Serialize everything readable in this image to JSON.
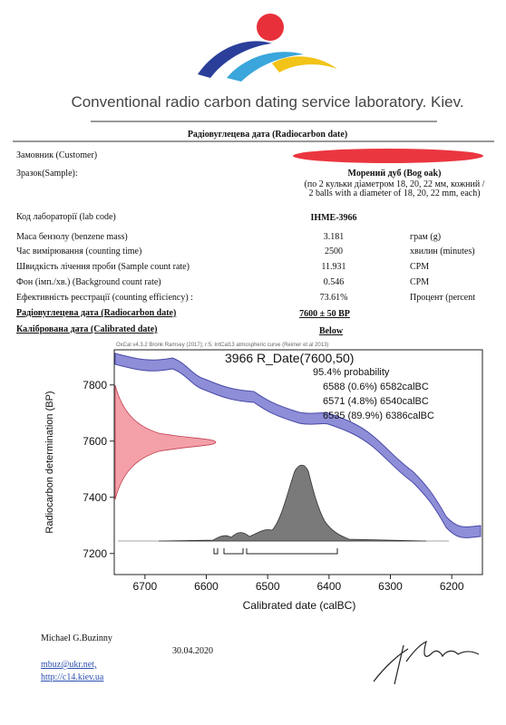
{
  "header": {
    "lab_name": "Conventional radio carbon dating service laboratory. Kiev."
  },
  "title": "Радіовуглецева дата (Radiocarbon date)",
  "rows": [
    {
      "label": "Замовник (Customer)"
    },
    {
      "label": "Зразок(Sample):",
      "value": "Морений дуб (Bog oak)",
      "value_note": [
        "(по 2 кульки діаметром 18, 20, 22 мм, кожний /",
        "2 balls with a diameter of 18, 20, 22 mm, each)"
      ]
    },
    {
      "label": "Код лабораторії (lab code)",
      "value": "ІНМЕ-3966"
    },
    {
      "label": "Маса бензолу (benzene mass)",
      "value": "3.181",
      "unit": "грам (g)"
    },
    {
      "label": "Час вимірювання (counting time)",
      "value": "2500",
      "unit": "хвилин (minutes)"
    },
    {
      "label": "Швидкість лічення проби (Sample count rate)",
      "value": "11.931",
      "unit": "CPM"
    },
    {
      "label": "Фон (імп./хв.) (Background count rate)",
      "value": "0.546",
      "unit": "CPM"
    },
    {
      "label": "Ефективність реєстрації (counting efficiency) :",
      "value": "73.61%",
      "unit": "Процент (percent"
    },
    {
      "label": "Радіовуглецева дата (Radiocarbon date)",
      "value": "7600 ± 50 BP"
    },
    {
      "label": "Калібрована дата (Calibrated date)",
      "value": "Below"
    }
  ],
  "chart": {
    "software_note": "OxCal v4.3.2 Bronk Ramsey (2017); r:5; IntCal13 atmospheric curve (Reimer et al 2013)",
    "title": "3966 R_Date(7600,50)",
    "probability_label": "95.4% probability",
    "ranges": [
      "6588 (0.6%) 6582calBC",
      "6571 (4.8%) 6540calBC",
      "6535 (89.9%) 6386calBC"
    ],
    "y_label": "Radiocarbon determination (BP)",
    "x_label": "Calibrated date (calBC)",
    "xlim": [
      6750,
      6150
    ],
    "xticks": [
      6700,
      6600,
      6500,
      6400,
      6300,
      6200
    ],
    "ylim": [
      7125,
      7925
    ],
    "yticks": [
      7200,
      7400,
      7600,
      7800
    ]
  },
  "footer": {
    "name": "Michael G.Buzinny",
    "date": "30.04.2020",
    "email": "mbuz@ukr.net,",
    "website": "http://c14.kiev.ua"
  }
}
